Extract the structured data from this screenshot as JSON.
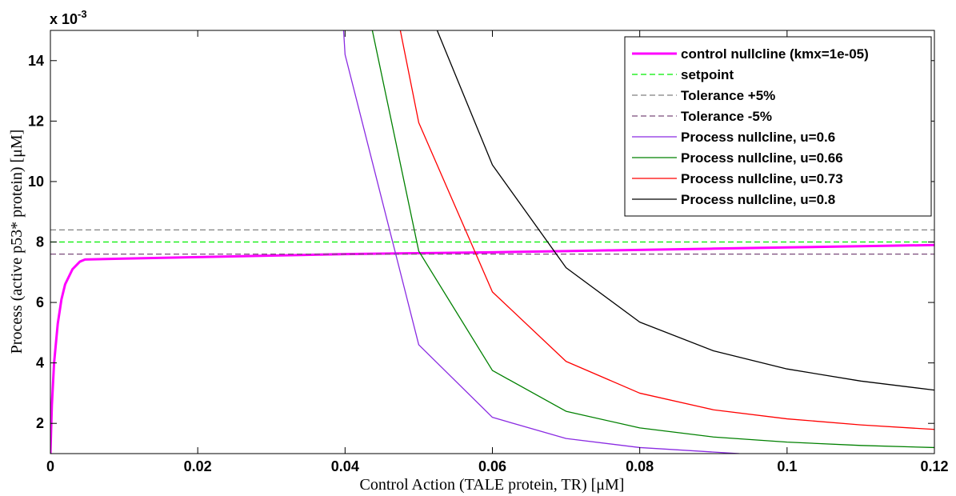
{
  "chart_data": {
    "type": "line",
    "xlabel": "Control Action (TALE protein, TR) [μM]",
    "ylabel": "Process (active p53* protein) [μM]",
    "y_multiplier_label": "x 10",
    "y_multiplier_exponent": "-3",
    "xlim": [
      0,
      0.12
    ],
    "ylim": [
      1,
      15
    ],
    "x_ticks": [
      0,
      0.02,
      0.04,
      0.06,
      0.08,
      0.1,
      0.12
    ],
    "x_tick_labels": [
      "0",
      "0.02",
      "0.04",
      "0.06",
      "0.08",
      "0.1",
      "0.12"
    ],
    "y_ticks": [
      2,
      4,
      6,
      8,
      10,
      12,
      14
    ],
    "y_tick_labels": [
      "2",
      "4",
      "6",
      "8",
      "10",
      "12",
      "14"
    ],
    "grid": false,
    "legend_position": "top-right",
    "series": [
      {
        "name": "control nullcline (kmx=1e-05)",
        "color": "#ff00ff",
        "style": "solid",
        "width": 3,
        "x": [
          0,
          0.0002,
          0.0005,
          0.001,
          0.0015,
          0.002,
          0.003,
          0.004,
          0.0047,
          0.01,
          0.02,
          0.03,
          0.04,
          0.05,
          0.06,
          0.07,
          0.08,
          0.09,
          0.1,
          0.11,
          0.12
        ],
        "y": [
          1.0,
          2.6,
          4.0,
          5.3,
          6.1,
          6.6,
          7.1,
          7.35,
          7.42,
          7.45,
          7.5,
          7.55,
          7.6,
          7.63,
          7.66,
          7.7,
          7.74,
          7.78,
          7.82,
          7.86,
          7.9
        ]
      },
      {
        "name": "setpoint",
        "color": "#00ee00",
        "style": "dashed",
        "width": 1.2,
        "x": [
          0,
          0.12
        ],
        "y": [
          8.0,
          8.0
        ]
      },
      {
        "name": "Tolerance +5%",
        "color": "#808080",
        "style": "dashed",
        "width": 1.2,
        "x": [
          0,
          0.12
        ],
        "y": [
          8.4,
          8.4
        ]
      },
      {
        "name": "Tolerance -5%",
        "color": "#7a4a7a",
        "style": "dashed",
        "width": 1.2,
        "x": [
          0,
          0.12
        ],
        "y": [
          7.6,
          7.6
        ]
      },
      {
        "name": "Process nullcline, u=0.6",
        "color": "#8a2be2",
        "style": "solid",
        "width": 1.3,
        "x": [
          0.0398,
          0.04,
          0.05,
          0.06,
          0.07,
          0.08,
          0.0935
        ],
        "y": [
          15,
          14.2,
          4.6,
          2.2,
          1.5,
          1.2,
          1.0
        ]
      },
      {
        "name": "Process nullcline, u=0.66",
        "color": "#008000",
        "style": "solid",
        "width": 1.3,
        "x": [
          0.0437,
          0.05,
          0.06,
          0.07,
          0.08,
          0.09,
          0.1,
          0.11,
          0.12
        ],
        "y": [
          15,
          7.7,
          3.75,
          2.4,
          1.85,
          1.55,
          1.38,
          1.27,
          1.2
        ]
      },
      {
        "name": "Process nullcline, u=0.73",
        "color": "#ff0000",
        "style": "solid",
        "width": 1.3,
        "x": [
          0.0475,
          0.05,
          0.06,
          0.07,
          0.08,
          0.09,
          0.1,
          0.11,
          0.12
        ],
        "y": [
          15,
          11.95,
          6.35,
          4.05,
          3.0,
          2.45,
          2.15,
          1.95,
          1.8
        ]
      },
      {
        "name": "Process nullcline, u=0.8",
        "color": "#000000",
        "style": "solid",
        "width": 1.3,
        "x": [
          0.0525,
          0.06,
          0.07,
          0.08,
          0.09,
          0.1,
          0.11,
          0.12
        ],
        "y": [
          15,
          10.55,
          7.15,
          5.35,
          4.4,
          3.8,
          3.4,
          3.1
        ]
      }
    ]
  }
}
